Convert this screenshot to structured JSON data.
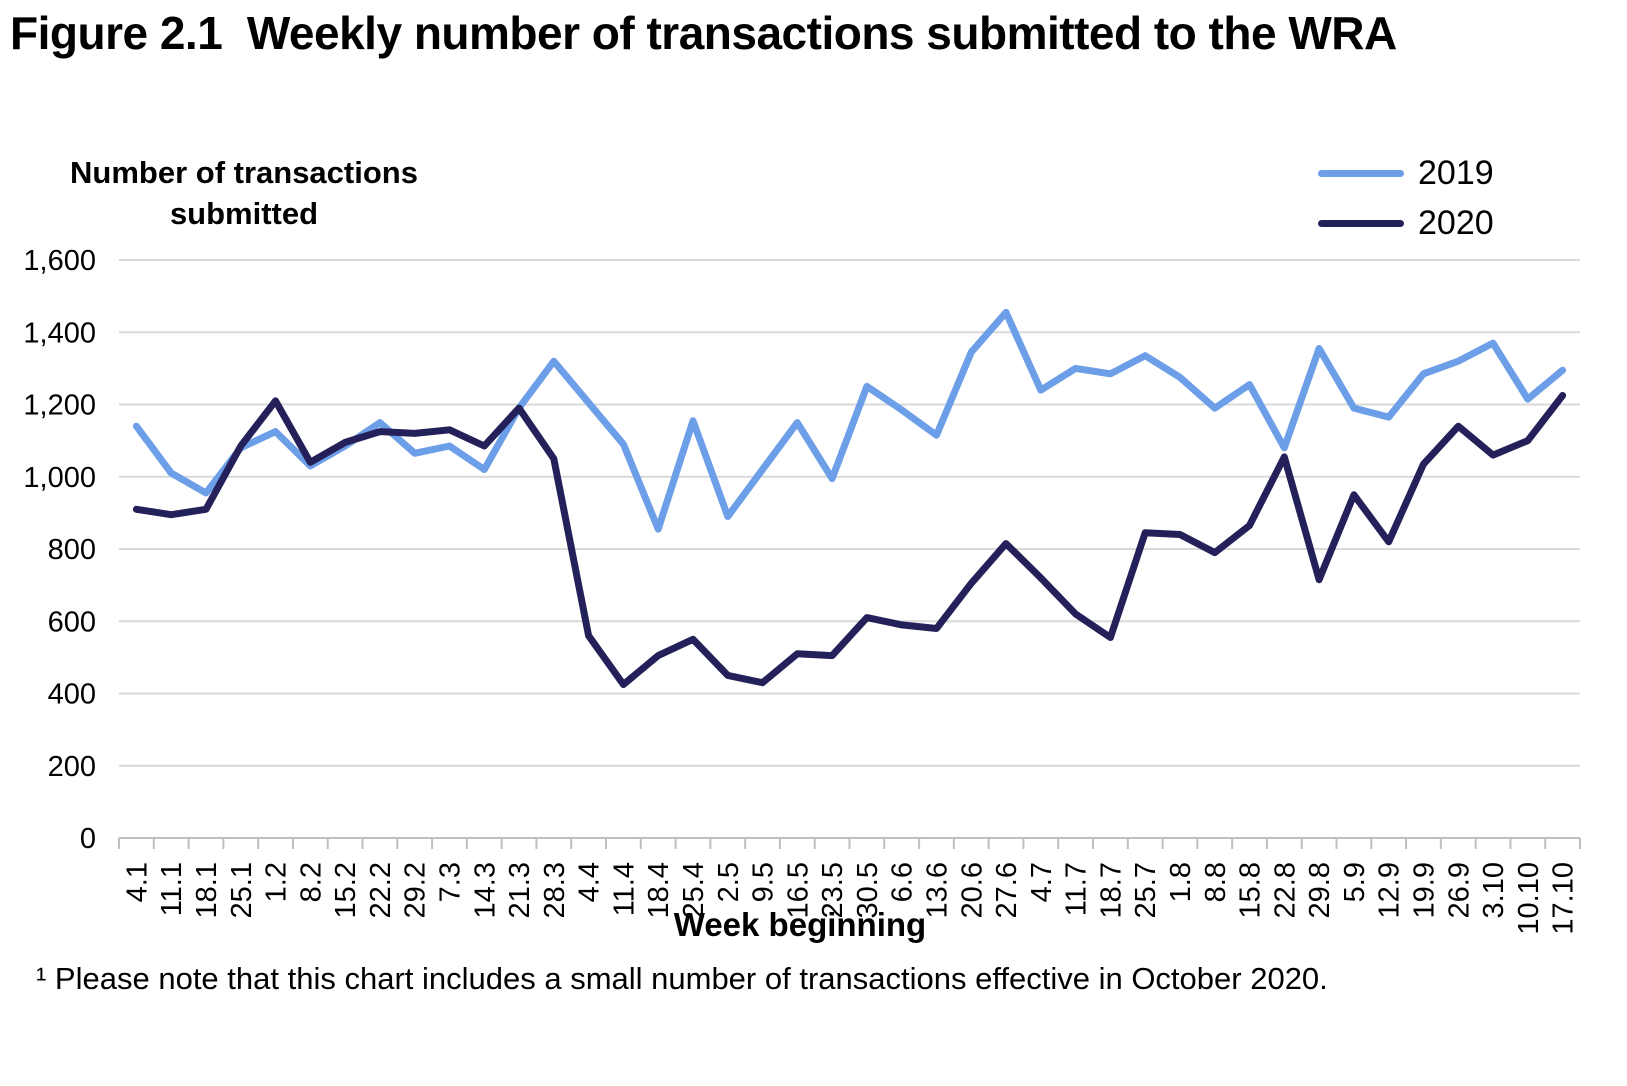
{
  "figure": {
    "title": "Figure 2.1  Weekly number of transactions submitted to the WRA",
    "footnote": "¹ Please note that this chart includes a small number of transactions effective in October 2020."
  },
  "chart_data": {
    "type": "line",
    "title": "Weekly number of transactions submitted to the WRA",
    "y_axis_title_line1": "Number of transactions",
    "y_axis_title_line2": "submitted",
    "xlabel": "Week beginning",
    "ylim": [
      0,
      1600
    ],
    "y_tick_step": 200,
    "grid": "horizontal-only",
    "legend_position": "top-right",
    "colors": {
      "gridline": "#d9d9d9",
      "axis": "#bfbfbf",
      "series_2019": "#6d9ee8",
      "series_2020": "#24215a"
    },
    "categories": [
      "4.1",
      "11.1",
      "18.1",
      "25.1",
      "1.2",
      "8.2",
      "15.2",
      "22.2",
      "29.2",
      "7.3",
      "14.3",
      "21.3",
      "28.3",
      "4.4",
      "11.4",
      "18.4",
      "25.4",
      "2.5",
      "9.5",
      "16.5",
      "23.5",
      "30.5",
      "6.6",
      "13.6",
      "20.6",
      "27.6",
      "4.7",
      "11.7",
      "18.7",
      "25.7",
      "1.8",
      "8.8",
      "15.8",
      "22.8",
      "29.8",
      "5.9",
      "12.9",
      "19.9",
      "26.9",
      "3.10",
      "10.10",
      "17.10"
    ],
    "series": [
      {
        "name": "2019",
        "color": "#6d9ee8",
        "values": [
          1140,
          1010,
          955,
          1080,
          1125,
          1030,
          1085,
          1150,
          1065,
          1085,
          1020,
          1190,
          1320,
          1205,
          1090,
          855,
          1155,
          890,
          1020,
          1150,
          995,
          1250,
          1185,
          1115,
          1345,
          1455,
          1240,
          1300,
          1285,
          1335,
          1275,
          1190,
          1255,
          1080,
          1355,
          1190,
          1165,
          1285,
          1320,
          1370,
          1215,
          1295
        ]
      },
      {
        "name": "2020",
        "color": "#24215a",
        "values": [
          910,
          895,
          910,
          1085,
          1210,
          1040,
          1095,
          1125,
          1120,
          1130,
          1085,
          1190,
          1050,
          560,
          425,
          505,
          550,
          450,
          430,
          510,
          505,
          610,
          590,
          580,
          705,
          815,
          720,
          620,
          555,
          845,
          840,
          790,
          865,
          1055,
          715,
          950,
          820,
          1035,
          1140,
          1060,
          1100,
          1225
        ]
      }
    ]
  }
}
